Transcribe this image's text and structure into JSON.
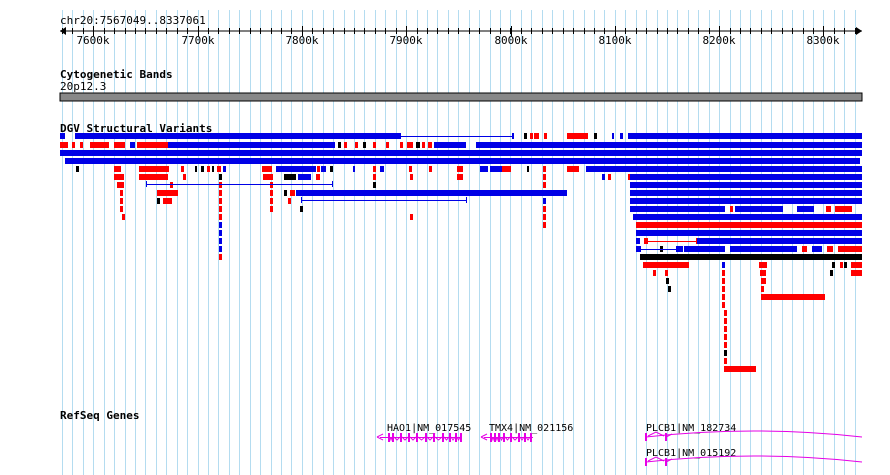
{
  "location": "chr20:7567049..8337061",
  "ruler": {
    "ticks": [
      "7600k",
      "7700k",
      "7800k",
      "7900k",
      "8000k",
      "8100k",
      "8200k",
      "8300k"
    ]
  },
  "tracks": {
    "cytoband": {
      "title": "Cytogenetic Bands",
      "band_label": "20p12.3"
    },
    "dgv": {
      "title": "DGV Structural Variants"
    },
    "refseq": {
      "title": "RefSeq Genes",
      "genes": [
        {
          "label": "HAO1|NM_017545"
        },
        {
          "label": "TMX4|NM_021156"
        },
        {
          "label": "PLCB1|NM_182734"
        },
        {
          "label": "PLCB1|NM_015192"
        }
      ]
    }
  },
  "colors": {
    "gain": "#0000e6",
    "loss": "#ff0000",
    "complex": "#000000",
    "gene": "#e600e6",
    "cytoband": "#888888",
    "grid": "#b4dcf0"
  }
}
